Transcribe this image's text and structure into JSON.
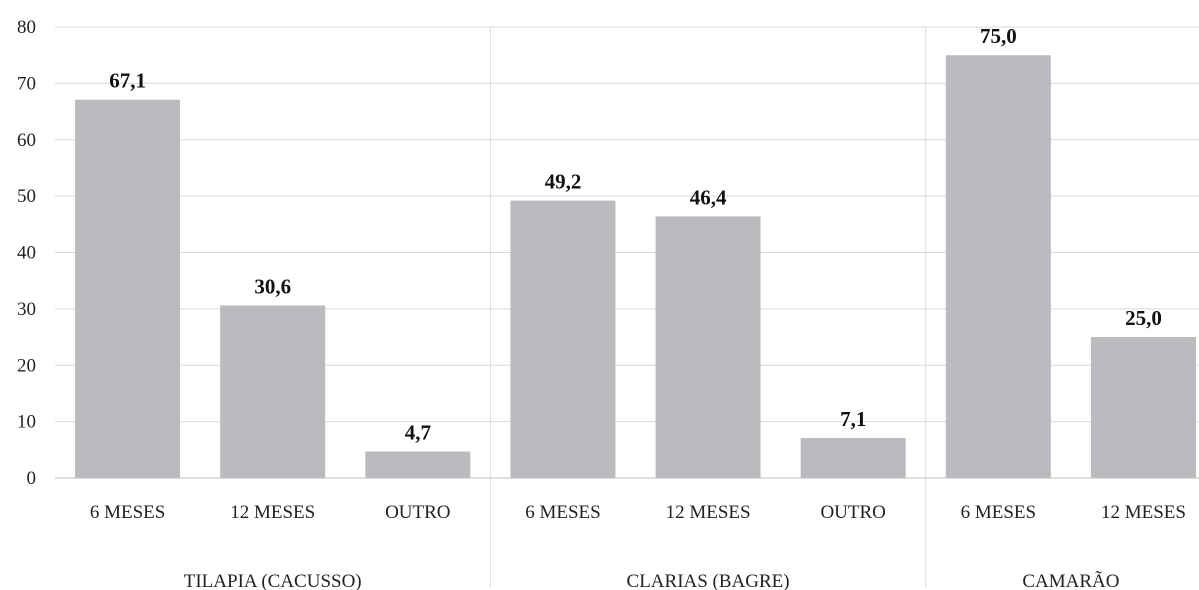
{
  "chart_data": {
    "type": "bar",
    "title": "",
    "xlabel": "",
    "ylabel": "",
    "ylim": [
      0,
      80
    ],
    "yticks": [
      0,
      10,
      20,
      30,
      40,
      50,
      60,
      70,
      80
    ],
    "grid": "horizontal",
    "legend": "none",
    "bar_color": "#bbbbbf",
    "groups": [
      {
        "name": "TILAPIA (CACUSSO)",
        "categories": [
          "6 MESES",
          "12 MESES",
          "OUTRO"
        ],
        "values": [
          67.1,
          30.6,
          4.7
        ],
        "value_labels": [
          "67,1",
          "30,6",
          "4,7"
        ]
      },
      {
        "name": "CLARIAS (BAGRE)",
        "categories": [
          "6 MESES",
          "12 MESES",
          "OUTRO"
        ],
        "values": [
          49.2,
          46.4,
          7.1
        ],
        "value_labels": [
          "49,2",
          "46,4",
          "7,1"
        ]
      },
      {
        "name": "CAMARÃO",
        "categories": [
          "6 MESES",
          "12 MESES"
        ],
        "values": [
          75.0,
          25.0
        ],
        "value_labels": [
          "75,0",
          "25,0"
        ]
      }
    ]
  }
}
